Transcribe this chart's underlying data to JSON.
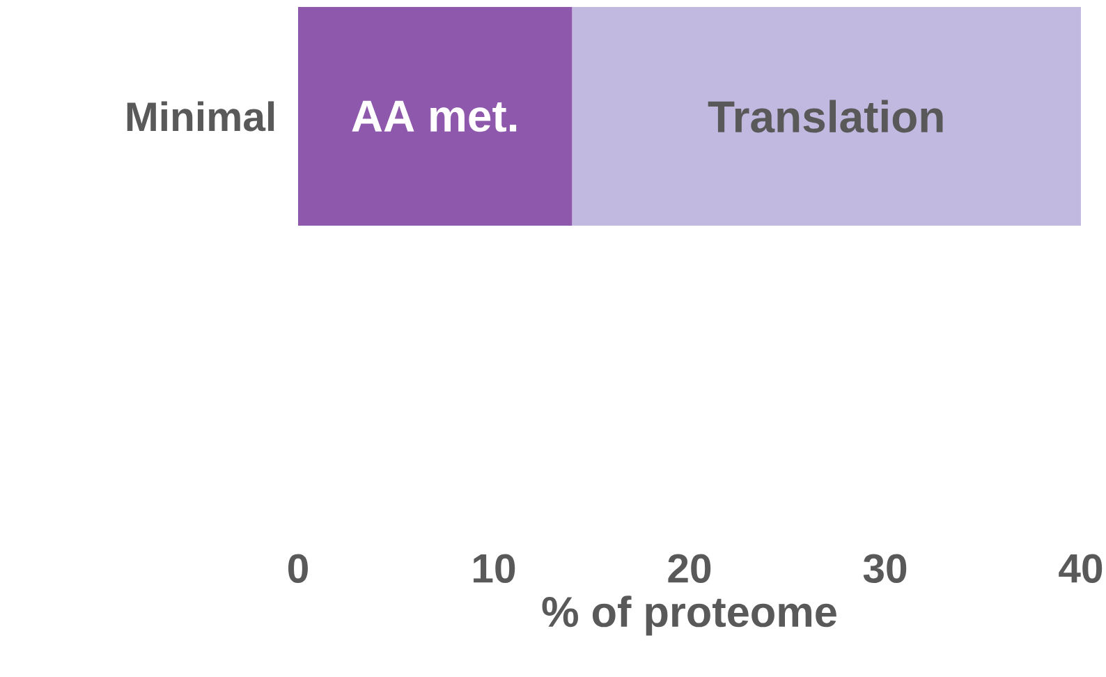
{
  "chart_data": {
    "type": "bar",
    "orientation": "horizontal",
    "stacked": true,
    "categories": [
      "Minimal"
    ],
    "series": [
      {
        "name": "AA met.",
        "color": "#8e59ad",
        "values": [
          14
        ]
      },
      {
        "name": "Translation",
        "color": "#c2b9e0",
        "values": [
          26
        ]
      }
    ],
    "xlabel": "% of proteome",
    "xlim": [
      0,
      40
    ],
    "xticks": [
      0,
      10,
      20,
      30,
      40
    ]
  }
}
